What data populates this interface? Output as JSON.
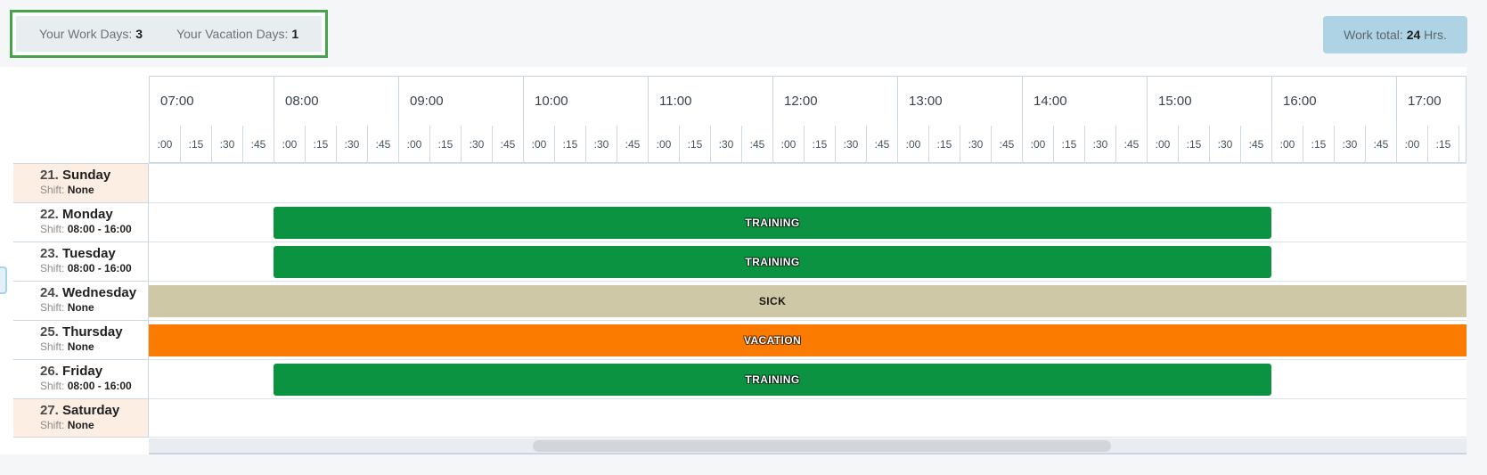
{
  "summary": {
    "work_days_label": "Your Work Days:",
    "work_days_value": "3",
    "vacation_days_label": "Your Vacation Days:",
    "vacation_days_value": "1"
  },
  "work_total": {
    "label": "Work total:",
    "value": "24",
    "unit": "Hrs."
  },
  "timeline": {
    "hours": [
      "07:00",
      "08:00",
      "09:00",
      "10:00",
      "11:00",
      "12:00",
      "13:00",
      "14:00",
      "15:00",
      "16:00",
      "17:00"
    ],
    "minutes": [
      ":00",
      ":15",
      ":30",
      ":45"
    ]
  },
  "days": [
    {
      "number": "21.",
      "name": "Sunday",
      "shift_label": "Shift:",
      "shift_value": "None",
      "weekend": true,
      "event": null
    },
    {
      "number": "22.",
      "name": "Monday",
      "shift_label": "Shift:",
      "shift_value": "08:00 - 16:00",
      "weekend": false,
      "event": {
        "label": "TRAINING",
        "type": "training",
        "start": "08:00",
        "end": "16:00",
        "full_width": false
      }
    },
    {
      "number": "23.",
      "name": "Tuesday",
      "shift_label": "Shift:",
      "shift_value": "08:00 - 16:00",
      "weekend": false,
      "event": {
        "label": "TRAINING",
        "type": "training",
        "start": "08:00",
        "end": "16:00",
        "full_width": false
      }
    },
    {
      "number": "24.",
      "name": "Wednesday",
      "shift_label": "Shift:",
      "shift_value": "None",
      "weekend": false,
      "event": {
        "label": "SICK",
        "type": "sick",
        "full_width": true
      }
    },
    {
      "number": "25.",
      "name": "Thursday",
      "shift_label": "Shift:",
      "shift_value": "None",
      "weekend": false,
      "event": {
        "label": "VACATION",
        "type": "vacation",
        "full_width": true
      }
    },
    {
      "number": "26.",
      "name": "Friday",
      "shift_label": "Shift:",
      "shift_value": "08:00 - 16:00",
      "weekend": false,
      "event": {
        "label": "TRAINING",
        "type": "training",
        "start": "08:00",
        "end": "16:00",
        "full_width": false
      }
    },
    {
      "number": "27.",
      "name": "Saturday",
      "shift_label": "Shift:",
      "shift_value": "None",
      "weekend": true,
      "event": null
    }
  ],
  "colors": {
    "training": "#0c9342",
    "sick": "#cec8a6",
    "vacation": "#fb7a00",
    "weekend_row": "#fdeee3",
    "summary_border_green": "#46a24b",
    "work_total_blue": "#aed3e4"
  },
  "label_styles": {
    "training": "light",
    "sick": "dark",
    "vacation": "light"
  }
}
